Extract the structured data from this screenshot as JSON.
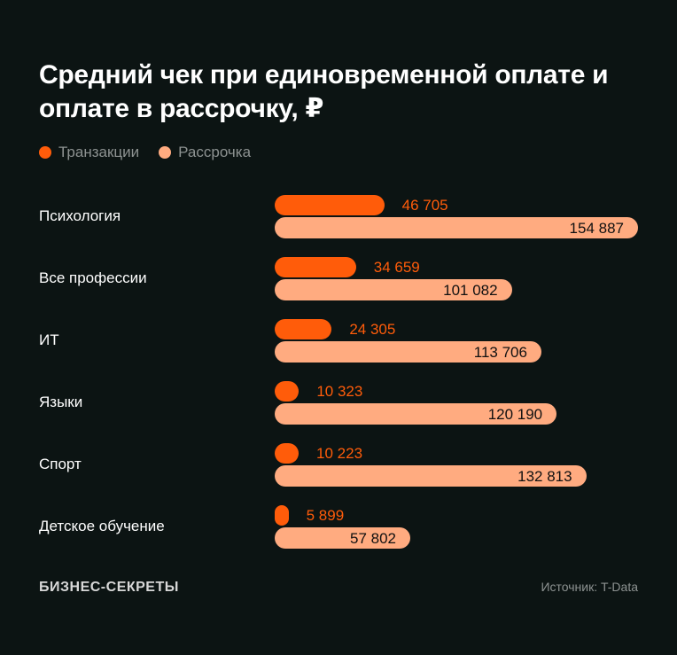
{
  "chart_data": {
    "type": "bar",
    "orientation": "horizontal",
    "title": "Средний чек при единовременной оплате и оплате в рассрочку, ₽",
    "legend_position": "top-left",
    "grid": false,
    "categories": [
      "Психология",
      "Все профессии",
      "ИТ",
      "Языки",
      "Спорт",
      "Детское обучение"
    ],
    "series": [
      {
        "name": "Транзакции",
        "color": "#ff5c0a",
        "values": [
          46705,
          34659,
          24305,
          10323,
          10223,
          5899
        ],
        "labels": [
          "46 705",
          "34 659",
          "24 305",
          "10 323",
          "10 223",
          "5 899"
        ]
      },
      {
        "name": "Рассрочка",
        "color": "#ffab80",
        "values": [
          154887,
          101082,
          113706,
          120190,
          132813,
          57802
        ],
        "labels": [
          "154 887",
          "101 082",
          "113 706",
          "120 190",
          "132 813",
          "57 802"
        ]
      }
    ]
  },
  "footer": {
    "brand": "БИЗНЕС-СЕКРЕТЫ",
    "source": "Источник: T-Data"
  }
}
